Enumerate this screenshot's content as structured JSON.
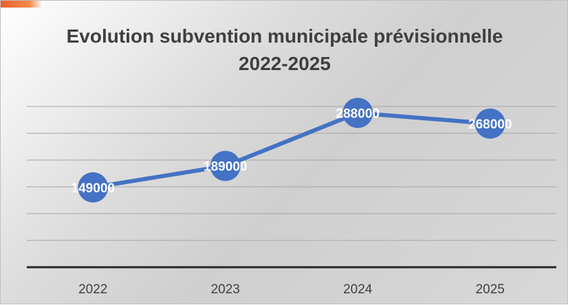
{
  "chart_data": {
    "type": "line",
    "title": "Evolution subvention municipale prévisionnelle 2022-2025",
    "title_lines": [
      "Evolution subvention municipale prévisionnelle",
      "2022-2025"
    ],
    "categories": [
      "2022",
      "2023",
      "2024",
      "2025"
    ],
    "series": [
      {
        "values": [
          149000,
          189000,
          288000,
          268000
        ],
        "data_labels": [
          "149000",
          "189000",
          "288000",
          "268000"
        ],
        "color": "#4472c4"
      }
    ],
    "ylim": [
      0,
      450000
    ],
    "grid_step": 50000,
    "grid": true,
    "legend": "none",
    "colors": {
      "gridline": "#a6a6a6",
      "axis": "#262626",
      "tick_label": "#404040",
      "data_label": "#ffffff"
    }
  }
}
